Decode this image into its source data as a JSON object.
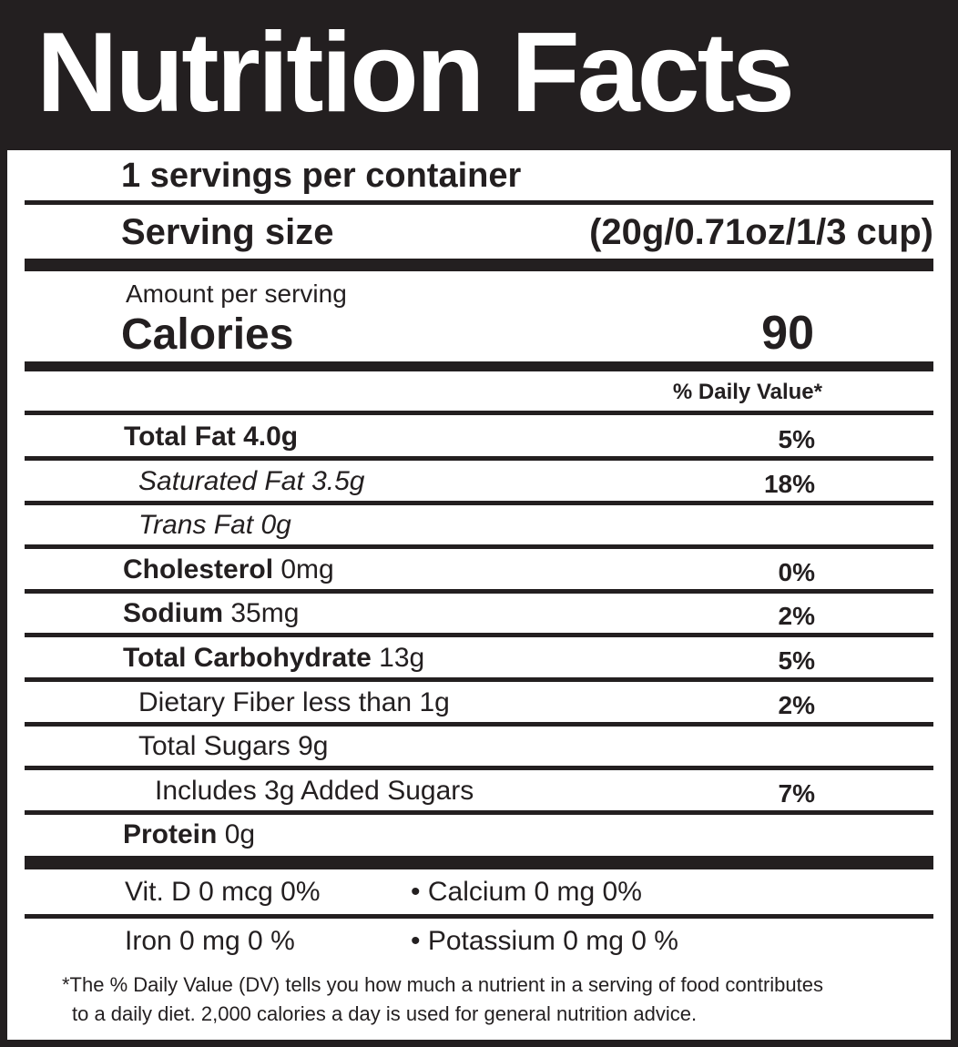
{
  "header": {
    "title": "Nutrition Facts"
  },
  "servings": {
    "per_container": "1 servings per container",
    "size_label": "Serving size",
    "size": "(20g/0.71oz/1/3 cup)"
  },
  "calories": {
    "amount_label": "Amount per serving",
    "label": "Calories",
    "value": "90"
  },
  "daily_value_header": "% Daily Value*",
  "nutrients": [
    {
      "name": "Total Fat 4.0g",
      "dv": "5%"
    },
    {
      "name": "Saturated Fat 3.5g",
      "dv": "18%"
    },
    {
      "name": "Trans Fat 0g"
    },
    {
      "name": "Cholesterol",
      "amount": "0mg",
      "dv": "0%"
    },
    {
      "name": "Sodium",
      "amount": "35mg",
      "dv": "2%"
    },
    {
      "name": "Total Carbohydrate",
      "amount": "13g",
      "dv": "5%"
    },
    {
      "name": "Dietary Fiber less than 1g",
      "dv": "2%"
    },
    {
      "name": "Total Sugars 9g"
    },
    {
      "name": "Includes 3g Added Sugars",
      "dv": "7%"
    },
    {
      "name": "Protein",
      "amount": "0g"
    }
  ],
  "minerals": [
    [
      "Vit. D 0 mcg 0%",
      "• Calcium 0 mg 0%"
    ],
    [
      "Iron 0 mg 0 %",
      "• Potassium 0 mg 0 %"
    ]
  ],
  "footnote": [
    "*The % Daily Value (DV) tells you how much a nutrient in a  serving of food contributes",
    "to a daily diet. 2,000 calories a day is used for general nutrition advice."
  ]
}
